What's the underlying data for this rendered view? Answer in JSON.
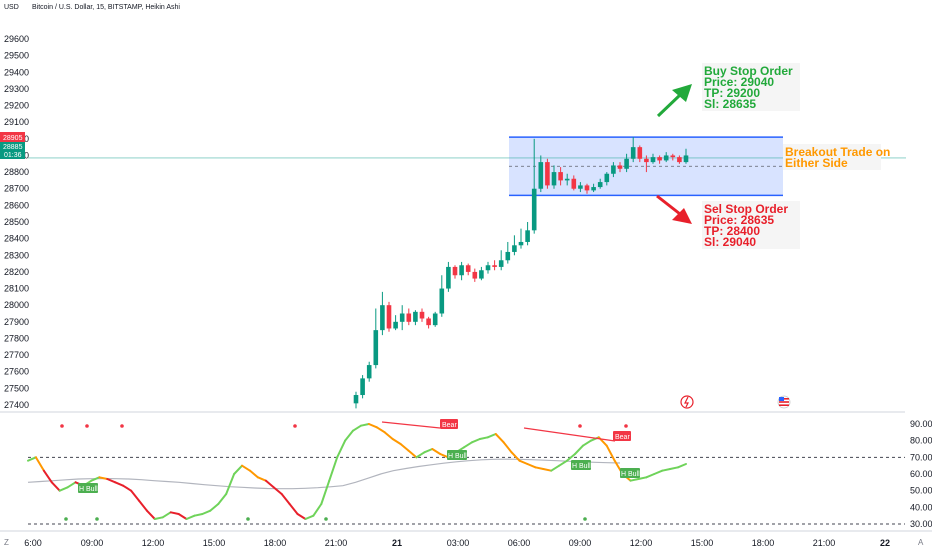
{
  "header": {
    "currency": "USD",
    "title": "Bitcoin / U.S. Dollar, 15, BITSTAMP, Heikin Ashi"
  },
  "price_tags": {
    "high": "28905",
    "last": "28885",
    "countdown": "01:36"
  },
  "corner": {
    "left": "Z",
    "right": "A"
  },
  "annotations": {
    "buy": {
      "line1": "Buy Stop Order",
      "line2": "Price: 29040",
      "line3": "TP: 29200",
      "line4": "Sl: 28635",
      "color": "#22a93b"
    },
    "sell": {
      "line1": "Sel Stop Order",
      "line2": "Price: 28635",
      "line3": "TP: 28400",
      "line4": "Sl: 29040",
      "color": "#e8202b"
    },
    "breakout": {
      "line1": "Breakout Trade on",
      "line2": "Either Side",
      "color": "#ff9800"
    }
  },
  "osc_labels": {
    "bear1": "Bear",
    "bear2": "Bear",
    "hbull1": "H Bull",
    "hbull2": "H Bull",
    "hbull3": "H Bull",
    "hbull4": "H Bull"
  },
  "chart_data": [
    {
      "type": "candlestick",
      "title": "Bitcoin / U.S. Dollar, 15, BITSTAMP, Heikin Ashi",
      "ylim": [
        27400,
        29700
      ],
      "y_ticks": [
        29600,
        29500,
        29400,
        29300,
        29200,
        29100,
        29000,
        28900,
        28800,
        28700,
        28600,
        28500,
        28400,
        28300,
        28200,
        28100,
        28000,
        27900,
        27800,
        27700,
        27600,
        27500,
        27400
      ],
      "x_tick_labels": [
        "6:00",
        "09:00",
        "12:00",
        "15:00",
        "18:00",
        "21:00",
        "21",
        "03:00",
        "06:00",
        "09:00",
        "12:00",
        "15:00",
        "18:00",
        "21:00",
        "22"
      ],
      "breakout_box": {
        "upper": 29010,
        "lower": 28660
      },
      "last_price": 28885,
      "candles": [
        [
          27410,
          27460,
          27380,
          27480
        ],
        [
          27460,
          27560,
          27440,
          27580
        ],
        [
          27560,
          27640,
          27540,
          27660
        ],
        [
          27640,
          27850,
          27620,
          27980
        ],
        [
          27850,
          28000,
          27820,
          28080
        ],
        [
          28000,
          27860,
          27840,
          28020
        ],
        [
          27860,
          27900,
          27850,
          27940
        ],
        [
          27900,
          27950,
          27850,
          28000
        ],
        [
          27950,
          27900,
          27880,
          27980
        ],
        [
          27900,
          27960,
          27880,
          27970
        ],
        [
          27960,
          27920,
          27900,
          27980
        ],
        [
          27920,
          27880,
          27860,
          27930
        ],
        [
          27880,
          27950,
          27870,
          27960
        ],
        [
          27950,
          28100,
          27930,
          28180
        ],
        [
          28100,
          28230,
          28080,
          28260
        ],
        [
          28230,
          28180,
          28160,
          28240
        ],
        [
          28180,
          28240,
          28150,
          28260
        ],
        [
          28240,
          28200,
          28180,
          28250
        ],
        [
          28200,
          28160,
          28140,
          28220
        ],
        [
          28160,
          28210,
          28150,
          28230
        ],
        [
          28210,
          28240,
          28190,
          28260
        ],
        [
          28240,
          28230,
          28210,
          28270
        ],
        [
          28230,
          28270,
          28210,
          28330
        ],
        [
          28270,
          28320,
          28250,
          28380
        ],
        [
          28320,
          28360,
          28300,
          28420
        ],
        [
          28360,
          28380,
          28340,
          28460
        ],
        [
          28380,
          28450,
          28360,
          28500
        ],
        [
          28450,
          28700,
          28430,
          29000
        ],
        [
          28700,
          28860,
          28680,
          28900
        ],
        [
          28860,
          28720,
          28700,
          28880
        ],
        [
          28720,
          28800,
          28700,
          28840
        ],
        [
          28800,
          28750,
          28720,
          28830
        ],
        [
          28750,
          28760,
          28720,
          28790
        ],
        [
          28760,
          28700,
          28690,
          28780
        ],
        [
          28700,
          28720,
          28680,
          28740
        ],
        [
          28720,
          28690,
          28670,
          28730
        ],
        [
          28690,
          28710,
          28680,
          28730
        ],
        [
          28710,
          28740,
          28700,
          28760
        ],
        [
          28740,
          28790,
          28720,
          28800
        ],
        [
          28790,
          28840,
          28770,
          28860
        ],
        [
          28840,
          28820,
          28800,
          28860
        ],
        [
          28820,
          28880,
          28800,
          28910
        ],
        [
          28880,
          28950,
          28860,
          29010
        ],
        [
          28950,
          28880,
          28860,
          28960
        ],
        [
          28880,
          28860,
          28800,
          28900
        ],
        [
          28860,
          28890,
          28850,
          28910
        ],
        [
          28890,
          28870,
          28850,
          28900
        ],
        [
          28870,
          28900,
          28860,
          28920
        ],
        [
          28900,
          28890,
          28870,
          28910
        ],
        [
          28890,
          28860,
          28850,
          28900
        ],
        [
          28860,
          28900,
          28850,
          28940
        ]
      ]
    },
    {
      "type": "line",
      "ylim": [
        25,
        95
      ],
      "y_ticks": [
        90,
        80,
        70,
        60,
        50,
        40,
        30
      ],
      "levels": [
        70,
        30
      ],
      "series": [
        {
          "values": [
            68,
            70,
            62,
            55,
            50,
            52,
            55,
            53,
            56,
            58,
            57,
            55,
            53,
            50,
            44,
            38,
            33,
            34,
            37,
            36,
            33,
            35,
            36,
            38,
            42,
            48,
            60,
            65,
            62,
            58,
            56,
            52,
            48,
            42,
            36,
            33,
            35,
            42,
            56,
            70,
            80,
            86,
            89,
            90,
            88,
            85,
            81,
            78,
            74,
            70,
            73,
            75,
            72,
            70,
            73,
            76,
            79,
            81,
            82,
            84,
            79,
            73,
            68,
            66,
            64,
            63,
            62,
            65,
            68,
            72,
            77,
            80,
            82,
            77,
            68,
            60,
            56,
            57,
            58,
            60,
            62,
            63,
            64,
            66
          ]
        },
        {
          "values": [
            55,
            55.5,
            56,
            56.5,
            57,
            57.2,
            57.3,
            57.2,
            57,
            56.6,
            56,
            55.5,
            55,
            54.3,
            53.6,
            53,
            52.4,
            52,
            51.6,
            51.3,
            51.2,
            51.2,
            51.4,
            51.8,
            52.3,
            53,
            55,
            57.5,
            60,
            62,
            63.3,
            64.5,
            65.5,
            66.5,
            67.3,
            68,
            68.5,
            68.8,
            68.9,
            68.8,
            68.6,
            68.3,
            68,
            67.6,
            67.3,
            67,
            66.8,
            66.6
          ]
        }
      ]
    }
  ]
}
